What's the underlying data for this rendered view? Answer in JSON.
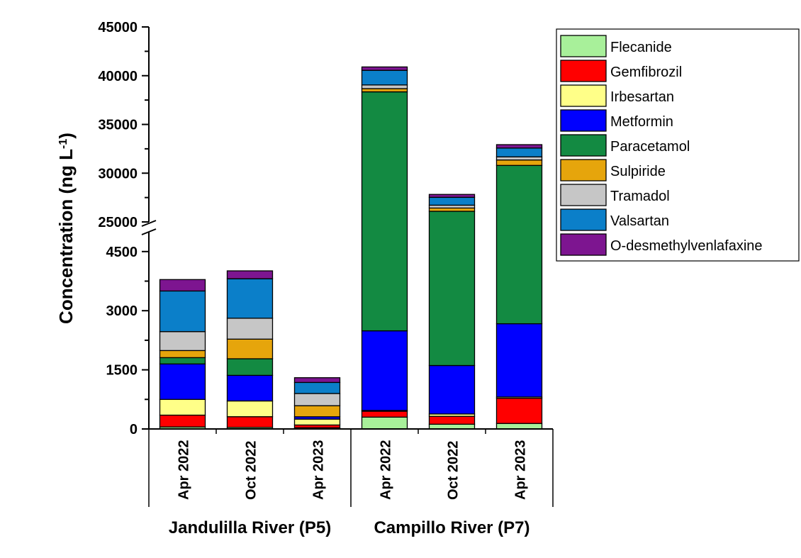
{
  "chart_data": {
    "type": "bar",
    "stacked": true,
    "ylabel": "Concentration (ng L",
    "ylabel_sup": "-1",
    "ylabel_close": ")",
    "axis_break": {
      "lower_range": [
        0,
        5000
      ],
      "upper_range": [
        25000,
        45000
      ]
    },
    "lower_ticks": [
      "0",
      "1500",
      "3000",
      "4500"
    ],
    "upper_ticks": [
      "25000",
      "30000",
      "35000",
      "40000",
      "45000"
    ],
    "categories": [
      "Apr 2022",
      "Oct 2022",
      "Apr 2023",
      "Apr 2022",
      "Oct 2022",
      "Apr 2023"
    ],
    "groups": [
      {
        "label": "Jandulilla River (P5)",
        "start": 0,
        "end": 2
      },
      {
        "label": "Campillo River (P7)",
        "start": 3,
        "end": 5
      }
    ],
    "legend_position": "top-right",
    "series": [
      {
        "name": "Flecanide",
        "color": "#a8f09a",
        "values": [
          50,
          40,
          30,
          300,
          120,
          140
        ]
      },
      {
        "name": "Gemfibrozil",
        "color": "#ff0000",
        "values": [
          300,
          270,
          70,
          150,
          200,
          640
        ]
      },
      {
        "name": "Irbesartan",
        "color": "#ffff88",
        "values": [
          400,
          400,
          150,
          20,
          60,
          30
        ]
      },
      {
        "name": "Metformin",
        "color": "#0000ff",
        "values": [
          900,
          650,
          60,
          2020,
          1230,
          1860
        ]
      },
      {
        "name": "Paracetamol",
        "color": "#138a42",
        "values": [
          160,
          420,
          0,
          35850,
          24480,
          28130
        ]
      },
      {
        "name": "Sulpiride",
        "color": "#e6a50c",
        "values": [
          180,
          500,
          280,
          330,
          340,
          560
        ]
      },
      {
        "name": "Tramadol",
        "color": "#c6c6c6",
        "values": [
          480,
          530,
          310,
          380,
          290,
          320
        ]
      },
      {
        "name": "Valsartan",
        "color": "#0b7fc9",
        "values": [
          1030,
          1000,
          280,
          1500,
          800,
          900
        ]
      },
      {
        "name": "O-desmethylvenlafaxine",
        "color": "#7d1590",
        "values": [
          290,
          200,
          120,
          350,
          300,
          350
        ]
      }
    ]
  }
}
